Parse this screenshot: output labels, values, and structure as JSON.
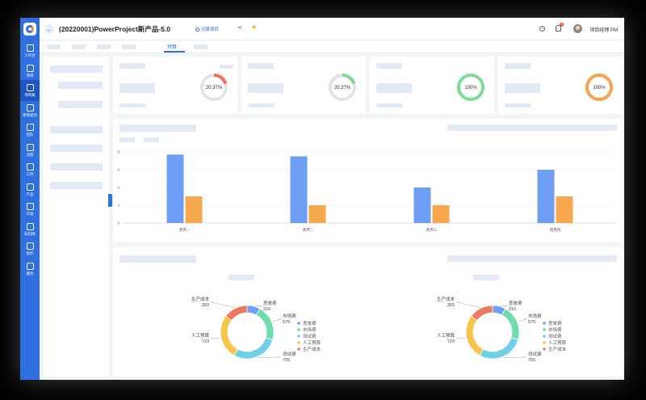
{
  "sidebar": {
    "items": [
      {
        "label": "工作台",
        "icon": "home-icon"
      },
      {
        "label": "项目",
        "icon": "project-icon"
      },
      {
        "label": "项目集",
        "icon": "program-icon"
      },
      {
        "label": "项目组合",
        "icon": "portfolio-icon"
      },
      {
        "label": "团队",
        "icon": "team-icon"
      },
      {
        "label": "流程",
        "icon": "flow-icon"
      },
      {
        "label": "工时",
        "icon": "clock-icon"
      },
      {
        "label": "产品",
        "icon": "product-icon"
      },
      {
        "label": "开发",
        "icon": "dev-icon"
      },
      {
        "label": "知识库",
        "icon": "knowledge-icon"
      },
      {
        "label": "协作",
        "icon": "share-icon"
      },
      {
        "label": "服务",
        "icon": "service-icon"
      }
    ]
  },
  "header": {
    "title": "(20220001)PowerProject新产品-5.0",
    "switch_label": "切换项目",
    "user_name": "项目经理 PM",
    "notification_count": "1"
  },
  "tabs": {
    "active_label": "预算"
  },
  "kpis": [
    {
      "value": "20.37%",
      "progress": 0.2037,
      "color": "#f0705a"
    },
    {
      "value": "20.37%",
      "progress": 0.2037,
      "color": "#7fdc95"
    },
    {
      "value": "100%",
      "progress": 1.0,
      "color": "#7fdc95"
    },
    {
      "value": "100%",
      "progress": 1.0,
      "color": "#f5a64e"
    }
  ],
  "chart_data": [
    {
      "type": "bar",
      "categories": [
        "费用一",
        "费用二",
        "费用三",
        "费用四"
      ],
      "series": [
        {
          "values": [
            7.7,
            7.5,
            4.0,
            6.0
          ],
          "color": "#6f9ef5"
        },
        {
          "values": [
            3.0,
            2.0,
            2.0,
            3.0
          ],
          "color": "#f6a84e"
        }
      ],
      "ylim": [
        0,
        8
      ],
      "yticks": [
        "0",
        "2",
        "4",
        "6",
        "8"
      ]
    },
    {
      "type": "pie",
      "labels": [
        "差旅费",
        "市场费",
        "测试费",
        "人工预算",
        "生产成本"
      ],
      "values": [
        210,
        575,
        755,
        723,
        393
      ],
      "colors": [
        "#6f9ef5",
        "#6fdcab",
        "#6fd0e6",
        "#f7c548",
        "#ef7b5c"
      ]
    },
    {
      "type": "pie",
      "labels": [
        "差旅费",
        "市场费",
        "测试费",
        "人工预算",
        "生产成本"
      ],
      "values": [
        210,
        575,
        755,
        723,
        393
      ],
      "colors": [
        "#6f9ef5",
        "#6fdcab",
        "#6fd0e6",
        "#f7c548",
        "#ef7b5c"
      ]
    }
  ]
}
